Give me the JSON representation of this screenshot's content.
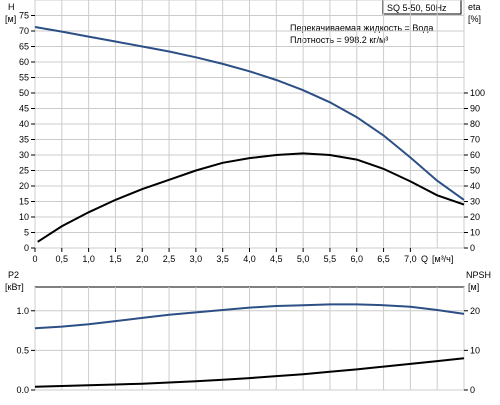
{
  "chart_data": [
    {
      "type": "line",
      "panel": "top",
      "title_box": "SQ 5-50, 50Hz",
      "annotation_lines": [
        "Перекачиваемая жидкость = Вода",
        "Плотность = 998.2 кг/м³"
      ],
      "ylabel_left": "H",
      "yunit_left": "[м]",
      "ylabel_right": "eta",
      "yunit_right": "[%]",
      "xlabel": "Q",
      "xunit": "[м³/ч]",
      "x_ticks": [
        "0",
        "0,5",
        "1,0",
        "1,5",
        "2,0",
        "2,5",
        "3,0",
        "3,5",
        "4,0",
        "4,5",
        "5,0",
        "5,5",
        "6,0",
        "6,5",
        "7,0"
      ],
      "xlim": [
        0,
        8
      ],
      "ylim_left": [
        0,
        80
      ],
      "ylim_right": [
        0,
        160
      ],
      "y_ticks_left": [
        0,
        5,
        10,
        15,
        20,
        25,
        30,
        35,
        40,
        45,
        50,
        55,
        60,
        65,
        70,
        75
      ],
      "y_ticks_right": [
        0,
        10,
        20,
        30,
        40,
        50,
        60,
        70,
        80,
        90,
        100
      ],
      "grid": true,
      "series": [
        {
          "axis": "left",
          "x": [
            0,
            0.5,
            1.0,
            1.5,
            2.0,
            2.5,
            3.0,
            3.5,
            4.0,
            4.5,
            5.0,
            5.5,
            6.0,
            6.5,
            7.0,
            7.5,
            8.0
          ],
          "values": [
            71.3,
            69.8,
            68.2,
            66.6,
            65.0,
            63.4,
            61.5,
            59.4,
            57.0,
            54.2,
            50.9,
            47.0,
            42.2,
            36.3,
            29.2,
            21.7,
            15.5
          ],
          "color": "#2c4f86"
        },
        {
          "axis": "right",
          "x": [
            0.05,
            0.5,
            1.0,
            1.5,
            2.0,
            2.5,
            3.0,
            3.5,
            4.0,
            4.5,
            5.0,
            5.5,
            6.0,
            6.5,
            7.0,
            7.5,
            8.0
          ],
          "values": [
            4,
            14,
            23,
            31,
            38,
            44,
            50,
            55,
            58,
            60,
            61,
            60,
            57,
            51,
            43,
            34,
            28
          ],
          "color": "#000000"
        }
      ]
    },
    {
      "type": "line",
      "panel": "bottom",
      "ylabel_left": "P2",
      "yunit_left": "[кВт]",
      "ylabel_right": "NPSH",
      "yunit_right": "[м]",
      "xlim": [
        0,
        8
      ],
      "ylim_left": [
        0,
        1.3
      ],
      "ylim_right": [
        0,
        26
      ],
      "y_ticks_left": [
        "0.0",
        "0.5",
        "1.0"
      ],
      "y_ticks_right": [
        "0",
        "10",
        "20"
      ],
      "grid": true,
      "series": [
        {
          "axis": "left",
          "x": [
            0,
            0.5,
            1.0,
            1.5,
            2.0,
            2.5,
            3.0,
            3.5,
            4.0,
            4.5,
            5.0,
            5.5,
            6.0,
            6.5,
            7.0,
            7.5,
            8.0
          ],
          "values": [
            0.78,
            0.8,
            0.83,
            0.87,
            0.91,
            0.95,
            0.98,
            1.01,
            1.04,
            1.06,
            1.07,
            1.08,
            1.08,
            1.07,
            1.05,
            1.01,
            0.96
          ],
          "color": "#2c4f86"
        },
        {
          "axis": "right",
          "x": [
            0,
            0.5,
            1.0,
            1.5,
            2.0,
            2.5,
            3.0,
            3.5,
            4.0,
            4.5,
            5.0,
            5.5,
            6.0,
            6.5,
            7.0,
            7.5,
            8.0
          ],
          "values": [
            0.8,
            1.0,
            1.2,
            1.4,
            1.6,
            1.9,
            2.2,
            2.6,
            3.0,
            3.5,
            4.0,
            4.6,
            5.2,
            5.9,
            6.6,
            7.3,
            8.0
          ],
          "color": "#000000"
        }
      ]
    }
  ]
}
